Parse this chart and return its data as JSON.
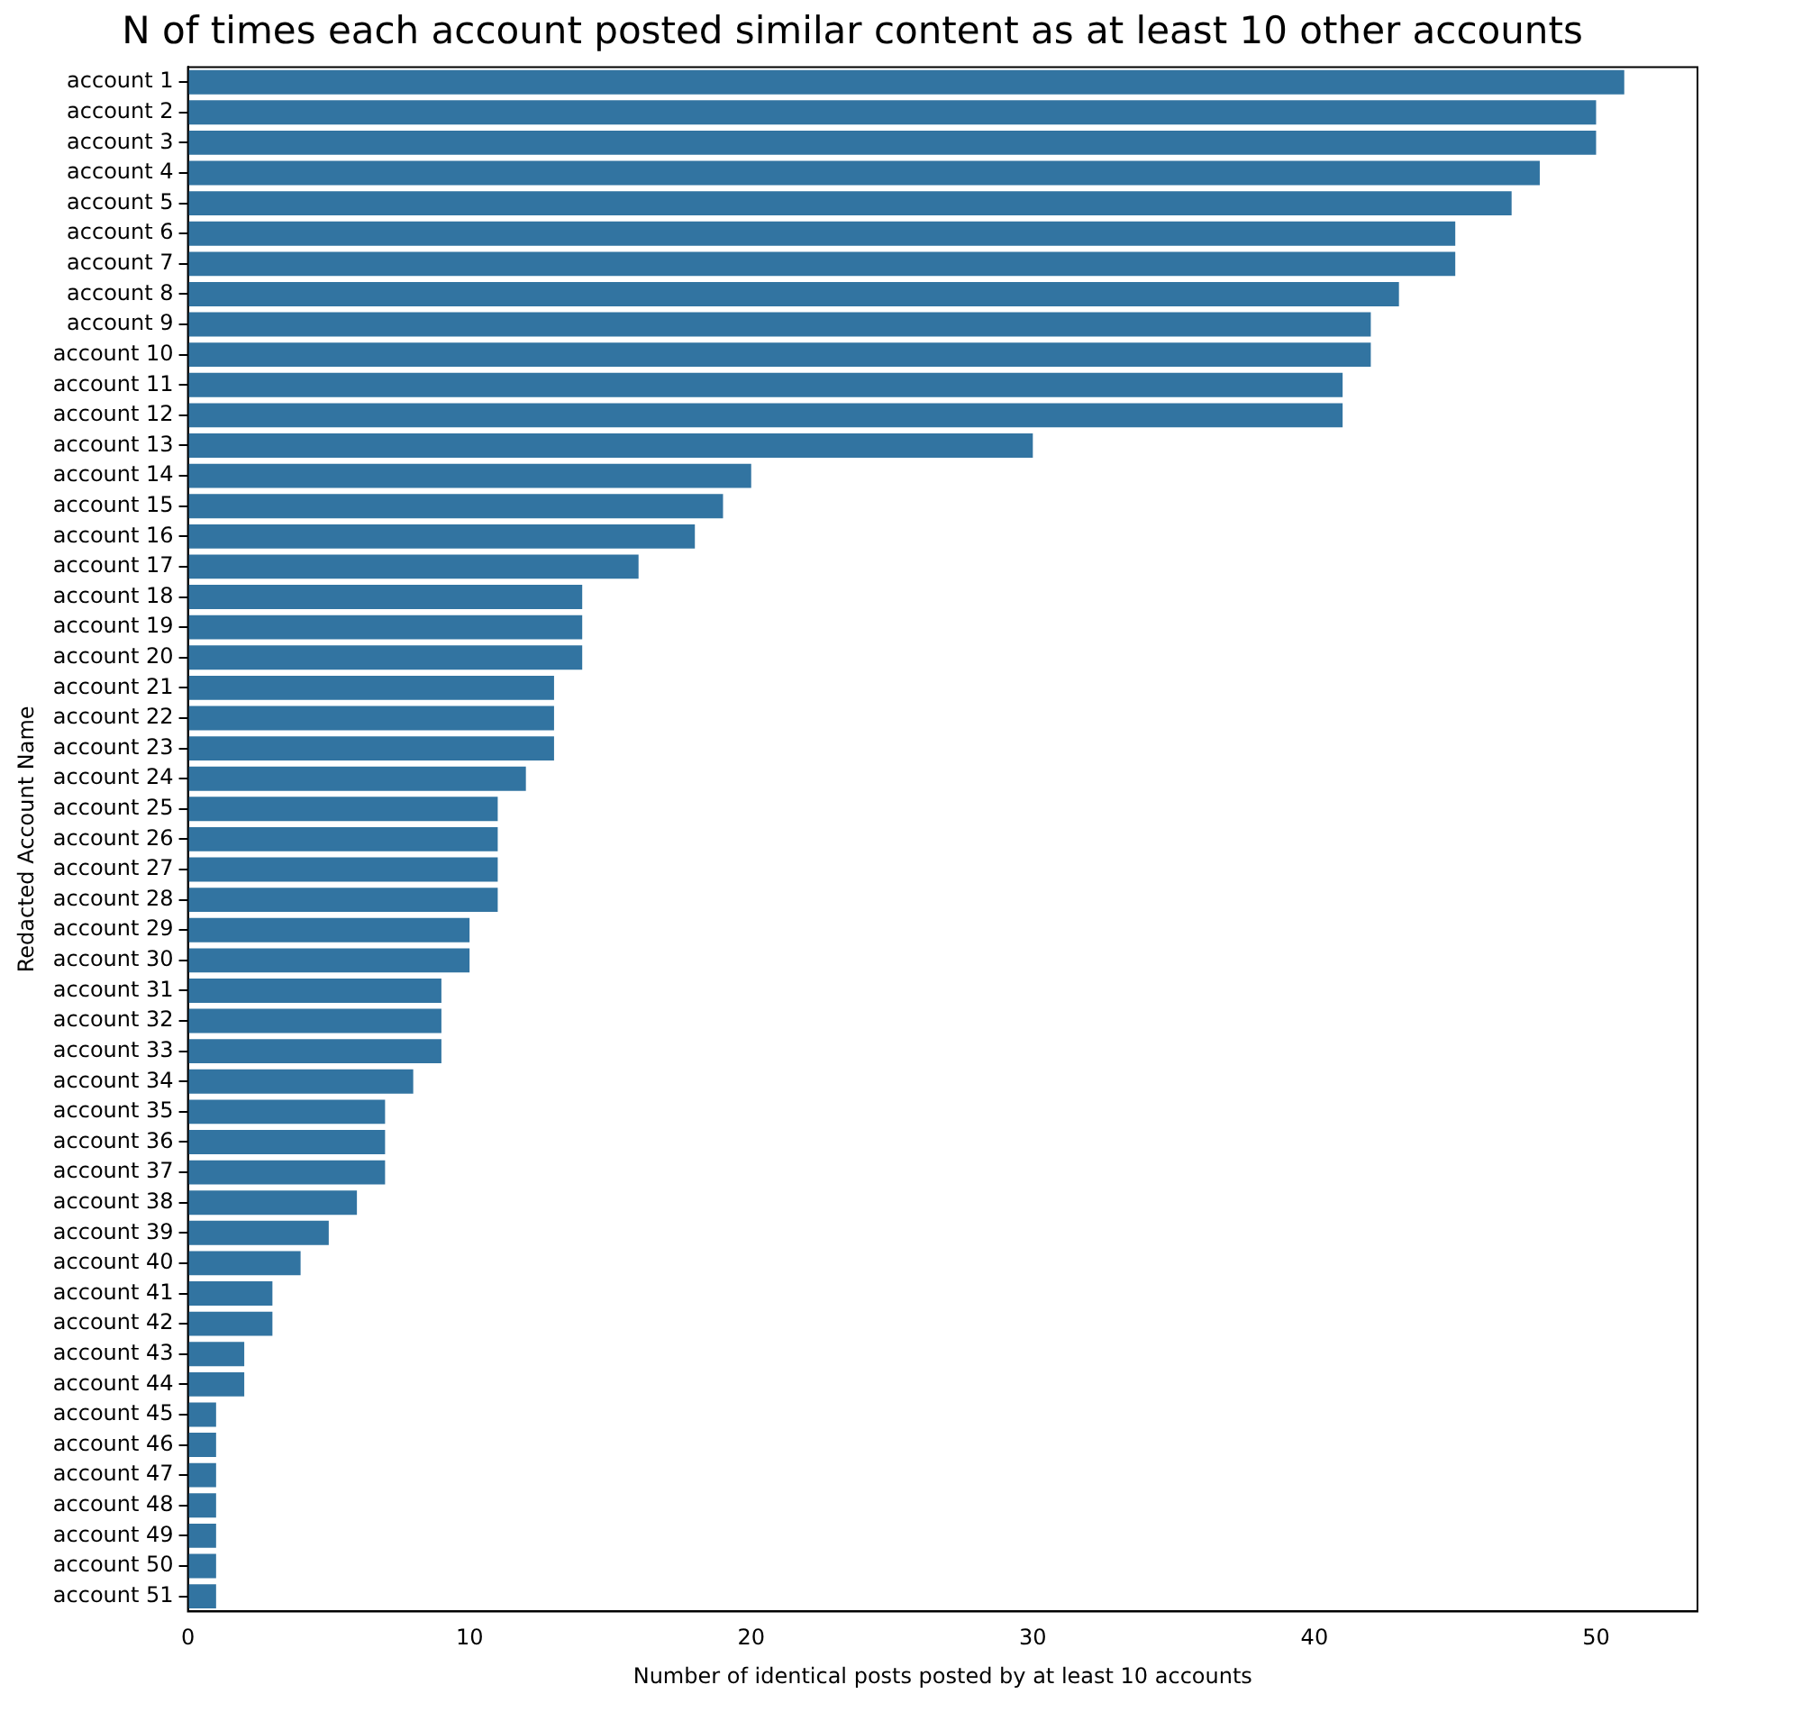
{
  "chart_data": {
    "type": "bar",
    "orientation": "horizontal",
    "title": "N of times each account posted similar content as at least 10 other accounts",
    "xlabel": "Number of identical posts posted by at least 10 accounts",
    "ylabel": "Redacted Account Name",
    "categories": [
      "account 1",
      "account 2",
      "account 3",
      "account 4",
      "account 5",
      "account 6",
      "account 7",
      "account 8",
      "account 9",
      "account 10",
      "account 11",
      "account 12",
      "account 13",
      "account 14",
      "account 15",
      "account 16",
      "account 17",
      "account 18",
      "account 19",
      "account 20",
      "account 21",
      "account 22",
      "account 23",
      "account 24",
      "account 25",
      "account 26",
      "account 27",
      "account 28",
      "account 29",
      "account 30",
      "account 31",
      "account 32",
      "account 33",
      "account 34",
      "account 35",
      "account 36",
      "account 37",
      "account 38",
      "account 39",
      "account 40",
      "account 41",
      "account 42",
      "account 43",
      "account 44",
      "account 45",
      "account 46",
      "account 47",
      "account 48",
      "account 49",
      "account 50",
      "account 51"
    ],
    "values": [
      51,
      50,
      50,
      48,
      47,
      45,
      45,
      43,
      42,
      42,
      41,
      41,
      30,
      20,
      19,
      18,
      16,
      14,
      14,
      14,
      13,
      13,
      13,
      12,
      11,
      11,
      11,
      11,
      10,
      10,
      9,
      9,
      9,
      8,
      7,
      7,
      7,
      6,
      5,
      4,
      3,
      3,
      2,
      2,
      1,
      1,
      1,
      1,
      1,
      1,
      1
    ],
    "color": "#3274a1",
    "xlim": [
      0,
      53.6
    ],
    "xticks": [
      0,
      10,
      20,
      30,
      40,
      50
    ],
    "grid": false,
    "legend": false
  }
}
